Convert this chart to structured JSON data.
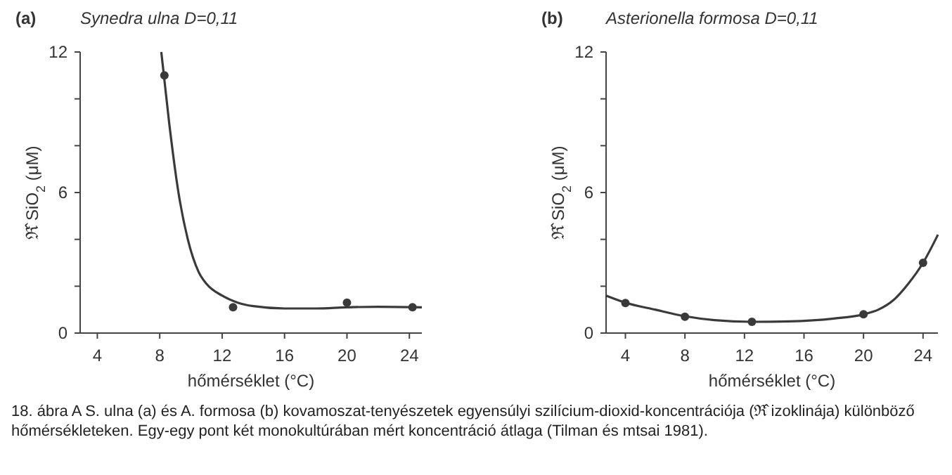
{
  "chart_data": [
    {
      "type": "scatter",
      "title": "(a)",
      "subtitle": "Synedra ulna  D=0,11",
      "xlabel": "hőmérséklet (°C)",
      "ylabel": "ℜ̂ SiO$_{2}$ (μM)",
      "xlim": [
        2.9,
        24.8
      ],
      "ylim": [
        0,
        12
      ],
      "xticks": [
        4,
        8,
        12,
        16,
        20,
        24
      ],
      "yticks": [
        0,
        {
          "value": 2,
          "label": null
        },
        {
          "value": 4,
          "label": null
        },
        6,
        {
          "value": 8,
          "label": null
        },
        {
          "value": 10,
          "label": null
        },
        12
      ],
      "grid": false,
      "marker": "circle",
      "series": [
        {
          "color": "#3a3a3a",
          "x": [
            8.3,
            12.7,
            20,
            24.2
          ],
          "values": [
            11.0,
            1.1,
            1.3,
            1.1
          ]
        },
        {
          "type": "line",
          "color": "#3a3a3a",
          "marker": "none",
          "line_style": "solid",
          "x": [
            8.1,
            8.6,
            9.2,
            9.8,
            10.5,
            11,
            12,
            13,
            14,
            16,
            18,
            20,
            22,
            24.8
          ],
          "values": [
            12,
            9,
            6,
            4,
            2.6,
            2.1,
            1.6,
            1.3,
            1.15,
            1.05,
            1.05,
            1.1,
            1.12,
            1.1
          ]
        }
      ]
    },
    {
      "type": "scatter",
      "title": "(b)",
      "subtitle": "Asterionella formosa  D=0,11",
      "xlabel": "hőmérséklet (°C)",
      "ylabel": "ℜ̂ SiO$_{2}$ (μM)",
      "xlim": [
        2.7,
        25
      ],
      "ylim": [
        0,
        12
      ],
      "xticks": [
        4,
        8,
        12,
        16,
        20,
        24
      ],
      "yticks": [
        0,
        {
          "value": 2,
          "label": null
        },
        {
          "value": 4,
          "label": null
        },
        6,
        {
          "value": 8,
          "label": null
        },
        {
          "value": 10,
          "label": null
        },
        12
      ],
      "grid": false,
      "marker": "circle",
      "series": [
        {
          "color": "#3a3a3a",
          "x": [
            4,
            8,
            12.5,
            20,
            24
          ],
          "values": [
            1.28,
            0.7,
            0.48,
            0.8,
            3.0
          ]
        },
        {
          "type": "line",
          "color": "#3a3a3a",
          "marker": "none",
          "line_style": "solid",
          "x": [
            2.7,
            4,
            6,
            8,
            10,
            12.5,
            15,
            18,
            20,
            21,
            22,
            23,
            24,
            25
          ],
          "values": [
            1.6,
            1.3,
            1.0,
            0.72,
            0.55,
            0.48,
            0.5,
            0.62,
            0.8,
            1.0,
            1.4,
            2.1,
            3.0,
            4.2
          ]
        }
      ],
      "annotations": [
        "18. ábra A S. ulna (a) és A. formosa (b) kovamoszat-tenyészetek egyensúlyi szilícium-dioxid-koncentrációja (ℜ̂ izoklinája) különböző hőmérsékleteken. Egy-egy pont két monokultúrában mért koncentráció átlaga (Tilman és mtsai 1981)."
      ]
    }
  ]
}
